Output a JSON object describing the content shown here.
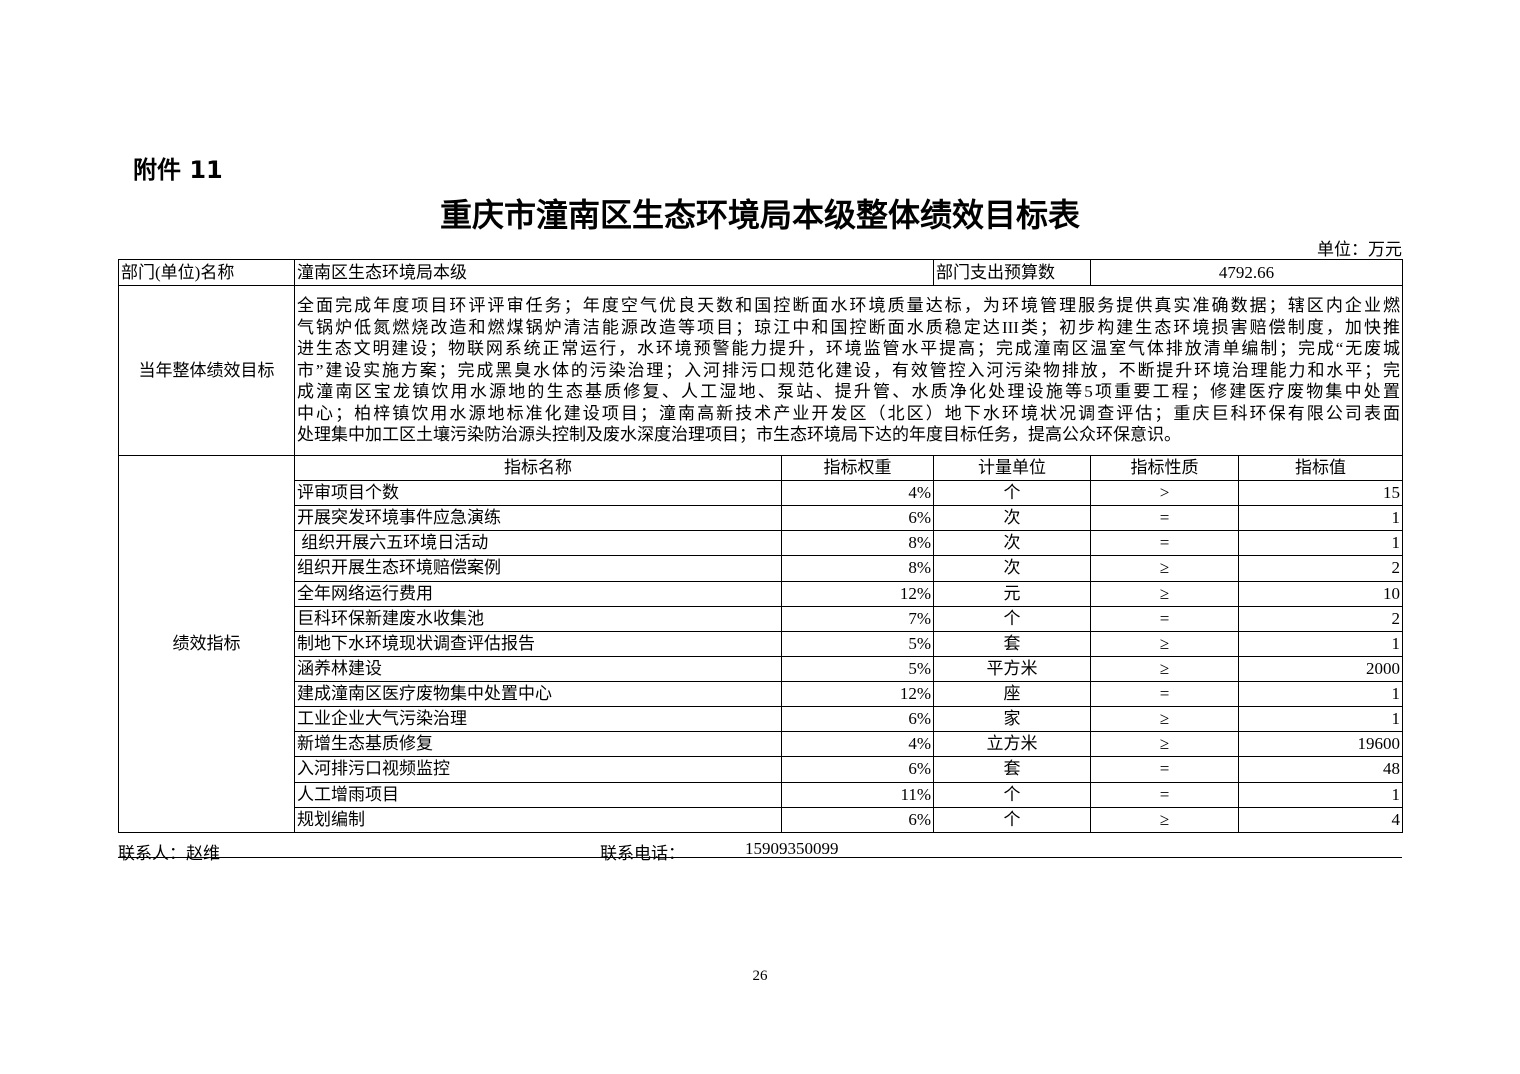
{
  "header": {
    "attachment": "附件 11",
    "title": "重庆市潼南区生态环境局本级整体绩效目标表",
    "unit": "单位：万元"
  },
  "table": {
    "dept_label": "部门(单位)名称",
    "dept_name": "潼南区生态环境局本级",
    "budget_label": "部门支出预算数",
    "budget": "4792.66",
    "goal_label": "当年整体绩效目标",
    "goal_lines": [
      "全面完成年度项目环评评审任务；年度空气优良天数和国控断面水环境质量达标，为环境管理服务提供真实准确数据；辖区内企业燃",
      "气锅炉低氮燃烧改造和燃煤锅炉清洁能源改造等项目；琼江中和国控断面水质稳定达III类；初步构建生态环境损害赔偿制度，加快推",
      "进生态文明建设；物联网系统正常运行，水环境预警能力提升，环境监管水平提高；完成潼南区温室气体排放清单编制；完成“无废城",
      "市”建设实施方案；完成黑臭水体的污染治理；入河排污口规范化建设，有效管控入河污染物排放，不断提升环境治理能力和水平；完",
      "成潼南区宝龙镇饮用水源地的生态基质修复、人工湿地、泵站、提升管、水质净化处理设施等5项重要工程；修建医疗废物集中处置",
      "中心；柏梓镇饮用水源地标准化建设项目；潼南高新技术产业开发区（北区）地下水环境状况调查评估；重庆巨科环保有限公司表面",
      "处理集中加工区土壤污染防治源头控制及废水深度治理项目；市生态环境局下达的年度目标任务，提高公众环保意识。"
    ],
    "indicator_label": "绩效指标",
    "columns": [
      "指标名称",
      "指标权重",
      "计量单位",
      "指标性质",
      "指标值"
    ],
    "rows": [
      [
        "评审项目个数",
        "4%",
        "个",
        ">",
        "15"
      ],
      [
        "开展突发环境事件应急演练",
        "6%",
        "次",
        "=",
        "1"
      ],
      [
        " 组织开展六五环境日活动",
        "8%",
        "次",
        "=",
        "1"
      ],
      [
        "组织开展生态环境赔偿案例",
        "8%",
        "次",
        "≥",
        "2"
      ],
      [
        "全年网络运行费用",
        "12%",
        "元",
        "≥",
        "10"
      ],
      [
        "巨科环保新建废水收集池",
        "7%",
        "个",
        "=",
        "2"
      ],
      [
        "制地下水环境现状调查评估报告",
        "5%",
        "套",
        "≥",
        "1"
      ],
      [
        "涵养林建设",
        "5%",
        "平方米",
        "≥",
        "2000"
      ],
      [
        "建成潼南区医疗废物集中处置中心",
        "12%",
        "座",
        "=",
        "1"
      ],
      [
        "工业企业大气污染治理",
        "6%",
        "家",
        "≥",
        "1"
      ],
      [
        "新增生态基质修复",
        "4%",
        "立方米",
        "≥",
        "19600"
      ],
      [
        "入河排污口视频监控",
        "6%",
        "套",
        "=",
        "48"
      ],
      [
        "人工增雨项目",
        "11%",
        "个",
        "=",
        "1"
      ],
      [
        "规划编制",
        "6%",
        "个",
        "≥",
        "4"
      ]
    ]
  },
  "footer": {
    "contact": "联系人：赵维",
    "phone_label": "联系电话：",
    "phone": "15909350099"
  },
  "page_number": "26"
}
